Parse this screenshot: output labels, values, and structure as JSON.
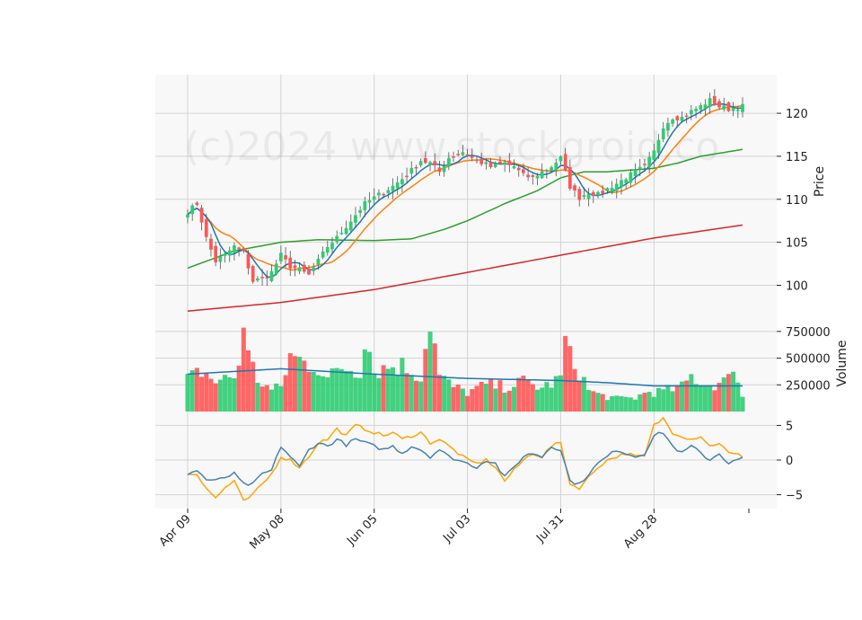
{
  "watermark": "(c)2024 www.stockgroid.co",
  "chart_data": {
    "type": "candlestick",
    "x_tick_labels": [
      "Apr 09",
      "May 08",
      "Jun 05",
      "Jul 03",
      "Jul 31",
      "Aug 28"
    ],
    "x_tick_indices": [
      0,
      20,
      40,
      60,
      80,
      100
    ],
    "n_bars": 120,
    "colors": {
      "up": "#2ecc71",
      "down": "#ff5555",
      "ma5": "#1f77b4",
      "ma10": "#ff7f0e",
      "ma20": "#2ca02c",
      "ma60": "#d62728",
      "vol_ma": "#1f77b4",
      "osc_fast": "#4682b4",
      "osc_slow": "#ffa500",
      "panel_bg": "#f8f8f8",
      "grid": "#d3d3d3"
    },
    "panels": [
      {
        "name": "price",
        "ylabel": "Price",
        "ylim": [
          96.5,
          124.5
        ],
        "yticks": [
          100,
          105,
          110,
          115,
          120
        ],
        "ytick_labels": [
          "100",
          "105",
          "110",
          "115",
          "120"
        ]
      },
      {
        "name": "volume",
        "ylabel": "Volume",
        "ylim": [
          0,
          900000
        ],
        "yticks": [
          250000,
          500000,
          750000
        ],
        "ytick_labels": [
          "250000",
          "500000",
          "750000"
        ]
      },
      {
        "name": "oscillator",
        "ylabel": "",
        "ylim": [
          -7,
          7
        ],
        "yticks": [
          -5,
          0,
          5
        ],
        "ytick_labels": [
          "−5",
          "0",
          "5"
        ]
      }
    ],
    "close_anchors": [
      [
        0,
        108.5
      ],
      [
        2,
        109.5
      ],
      [
        4,
        105.5
      ],
      [
        6,
        102.8
      ],
      [
        8,
        103.5
      ],
      [
        10,
        104.5
      ],
      [
        12,
        103.8
      ],
      [
        14,
        100.5
      ],
      [
        16,
        100.8
      ],
      [
        18,
        101.5
      ],
      [
        20,
        103.5
      ],
      [
        22,
        102.2
      ],
      [
        24,
        101.8
      ],
      [
        26,
        101.2
      ],
      [
        28,
        102.8
      ],
      [
        30,
        104.5
      ],
      [
        32,
        105.5
      ],
      [
        35,
        107.5
      ],
      [
        38,
        109.5
      ],
      [
        41,
        110.5
      ],
      [
        44,
        111.5
      ],
      [
        47,
        112.8
      ],
      [
        50,
        114.5
      ],
      [
        52,
        114.2
      ],
      [
        54,
        113.2
      ],
      [
        56,
        114.8
      ],
      [
        59,
        115.5
      ],
      [
        62,
        114.5
      ],
      [
        65,
        113.8
      ],
      [
        68,
        114.2
      ],
      [
        70,
        113.8
      ],
      [
        72,
        112.8
      ],
      [
        74,
        112.5
      ],
      [
        76,
        113.2
      ],
      [
        78,
        113.8
      ],
      [
        80,
        114.8
      ],
      [
        82,
        111.5
      ],
      [
        84,
        110.2
      ],
      [
        86,
        110.8
      ],
      [
        88,
        110.5
      ],
      [
        90,
        111.2
      ],
      [
        92,
        111.8
      ],
      [
        94,
        112.5
      ],
      [
        96,
        113.2
      ],
      [
        98,
        113.8
      ],
      [
        100,
        115.5
      ],
      [
        102,
        118.5
      ],
      [
        104,
        119.5
      ],
      [
        106,
        119.5
      ],
      [
        108,
        120.2
      ],
      [
        110,
        120.8
      ],
      [
        112,
        121.5
      ],
      [
        114,
        120.8
      ],
      [
        116,
        120.5
      ],
      [
        119,
        120.8
      ]
    ],
    "volume_anchors": [
      [
        0,
        300000
      ],
      [
        3,
        380000
      ],
      [
        6,
        280000
      ],
      [
        10,
        330000
      ],
      [
        11,
        430000
      ],
      [
        12,
        900000
      ],
      [
        13,
        520000
      ],
      [
        15,
        300000
      ],
      [
        18,
        200000
      ],
      [
        20,
        230000
      ],
      [
        22,
        520000
      ],
      [
        25,
        460000
      ],
      [
        28,
        420000
      ],
      [
        30,
        300000
      ],
      [
        33,
        420000
      ],
      [
        37,
        380000
      ],
      [
        38,
        750000
      ],
      [
        40,
        380000
      ],
      [
        43,
        420000
      ],
      [
        46,
        430000
      ],
      [
        50,
        330000
      ],
      [
        52,
        880000
      ],
      [
        54,
        330000
      ],
      [
        57,
        230000
      ],
      [
        60,
        180000
      ],
      [
        64,
        250000
      ],
      [
        68,
        230000
      ],
      [
        72,
        280000
      ],
      [
        76,
        220000
      ],
      [
        80,
        310000
      ],
      [
        81,
        680000
      ],
      [
        82,
        500000
      ],
      [
        84,
        380000
      ],
      [
        86,
        200000
      ],
      [
        88,
        160000
      ],
      [
        92,
        120000
      ],
      [
        96,
        130000
      ],
      [
        99,
        190000
      ],
      [
        100,
        180000
      ],
      [
        103,
        200000
      ],
      [
        106,
        230000
      ],
      [
        108,
        330000
      ],
      [
        111,
        250000
      ],
      [
        114,
        260000
      ],
      [
        116,
        300000
      ],
      [
        117,
        470000
      ],
      [
        119,
        130000
      ]
    ],
    "volume_ma_anchors": [
      [
        0,
        350000
      ],
      [
        20,
        400000
      ],
      [
        40,
        350000
      ],
      [
        60,
        310000
      ],
      [
        80,
        290000
      ],
      [
        90,
        270000
      ],
      [
        100,
        240000
      ],
      [
        119,
        240000
      ]
    ],
    "ma60_anchors": [
      [
        0,
        97
      ],
      [
        20,
        98
      ],
      [
        40,
        99.5
      ],
      [
        60,
        101.5
      ],
      [
        80,
        103.5
      ],
      [
        100,
        105.5
      ],
      [
        119,
        107
      ]
    ],
    "ma20_anchors": [
      [
        0,
        102
      ],
      [
        10,
        104
      ],
      [
        20,
        105
      ],
      [
        28,
        105.3
      ],
      [
        40,
        105.2
      ],
      [
        48,
        105.4
      ],
      [
        55,
        106.5
      ],
      [
        60,
        107.5
      ],
      [
        68,
        109.5
      ],
      [
        75,
        111
      ],
      [
        80,
        112.5
      ],
      [
        85,
        113.2
      ],
      [
        90,
        113.2
      ],
      [
        100,
        113.6
      ],
      [
        105,
        114.2
      ],
      [
        110,
        115
      ],
      [
        119,
        115.8
      ]
    ],
    "osc_fast_anchors": [
      [
        0,
        -2
      ],
      [
        2,
        -1.5
      ],
      [
        4,
        -2.8
      ],
      [
        6,
        -3
      ],
      [
        8,
        -2.5
      ],
      [
        10,
        -2
      ],
      [
        12,
        -3.5
      ],
      [
        14,
        -3.5
      ],
      [
        16,
        -2
      ],
      [
        18,
        -1.5
      ],
      [
        20,
        2
      ],
      [
        22,
        0.5
      ],
      [
        24,
        -1
      ],
      [
        26,
        1.5
      ],
      [
        28,
        2.5
      ],
      [
        30,
        2
      ],
      [
        32,
        3
      ],
      [
        34,
        2.2
      ],
      [
        36,
        3
      ],
      [
        38,
        2.5
      ],
      [
        40,
        2
      ],
      [
        42,
        1.5
      ],
      [
        44,
        2
      ],
      [
        46,
        1
      ],
      [
        48,
        2
      ],
      [
        50,
        1.5
      ],
      [
        52,
        0.5
      ],
      [
        54,
        1.5
      ],
      [
        56,
        0.5
      ],
      [
        58,
        0
      ],
      [
        60,
        -0.5
      ],
      [
        62,
        -1
      ],
      [
        64,
        0
      ],
      [
        66,
        -0.5
      ],
      [
        68,
        -2.5
      ],
      [
        70,
        -1
      ],
      [
        72,
        0.5
      ],
      [
        74,
        1
      ],
      [
        76,
        0.5
      ],
      [
        78,
        2
      ],
      [
        80,
        1.5
      ],
      [
        82,
        -3
      ],
      [
        84,
        -3.5
      ],
      [
        86,
        -2
      ],
      [
        88,
        -0.5
      ],
      [
        90,
        0.5
      ],
      [
        92,
        1.5
      ],
      [
        94,
        1
      ],
      [
        96,
        0.5
      ],
      [
        98,
        1
      ],
      [
        100,
        3.5
      ],
      [
        102,
        4
      ],
      [
        104,
        2
      ],
      [
        106,
        1
      ],
      [
        108,
        2
      ],
      [
        110,
        1
      ],
      [
        112,
        0
      ],
      [
        114,
        1
      ],
      [
        116,
        -0.5
      ],
      [
        119,
        0.3
      ]
    ],
    "osc_slow_anchors": [
      [
        0,
        -2
      ],
      [
        2,
        -2
      ],
      [
        4,
        -4
      ],
      [
        6,
        -5.5
      ],
      [
        8,
        -4
      ],
      [
        10,
        -3
      ],
      [
        12,
        -6
      ],
      [
        14,
        -5
      ],
      [
        16,
        -3.5
      ],
      [
        18,
        -2
      ],
      [
        20,
        0.5
      ],
      [
        22,
        0
      ],
      [
        24,
        -1
      ],
      [
        26,
        0.5
      ],
      [
        28,
        2.5
      ],
      [
        30,
        3
      ],
      [
        32,
        4.5
      ],
      [
        34,
        3.5
      ],
      [
        36,
        5
      ],
      [
        38,
        4.5
      ],
      [
        40,
        4
      ],
      [
        42,
        3.5
      ],
      [
        44,
        4
      ],
      [
        46,
        3
      ],
      [
        48,
        3.5
      ],
      [
        50,
        4
      ],
      [
        52,
        2.5
      ],
      [
        54,
        3
      ],
      [
        56,
        2
      ],
      [
        58,
        1
      ],
      [
        60,
        0
      ],
      [
        62,
        -0.5
      ],
      [
        64,
        0
      ],
      [
        66,
        -1
      ],
      [
        68,
        -3
      ],
      [
        70,
        -1.5
      ],
      [
        72,
        0
      ],
      [
        74,
        1
      ],
      [
        76,
        0.5
      ],
      [
        78,
        2
      ],
      [
        80,
        2.5
      ],
      [
        82,
        -3.5
      ],
      [
        84,
        -4
      ],
      [
        86,
        -2.5
      ],
      [
        88,
        -1
      ],
      [
        90,
        0
      ],
      [
        92,
        0.5
      ],
      [
        94,
        1
      ],
      [
        96,
        0.5
      ],
      [
        98,
        0.5
      ],
      [
        100,
        5
      ],
      [
        102,
        6
      ],
      [
        104,
        4
      ],
      [
        106,
        3.5
      ],
      [
        108,
        3
      ],
      [
        110,
        3.5
      ],
      [
        112,
        2
      ],
      [
        114,
        2.5
      ],
      [
        116,
        1
      ],
      [
        119,
        0.6
      ]
    ]
  }
}
